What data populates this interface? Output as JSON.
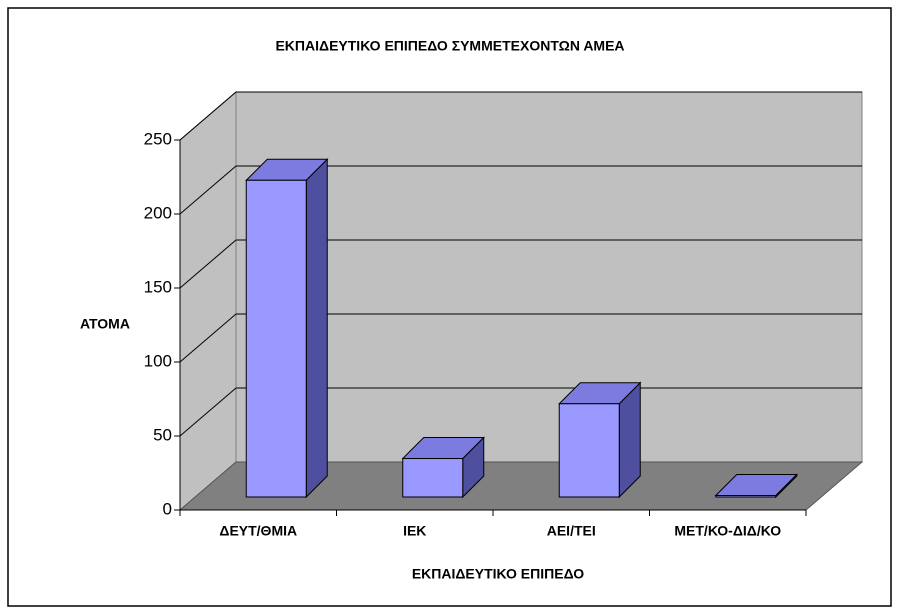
{
  "chart_data": {
    "type": "bar3d",
    "title": "ΕΚΠΑΙΔΕΥΤΙΚΟ ΕΠΙΠΕΔΟ ΣΥΜΜΕΤΕΧΟΝΤΩΝ ΑΜΕΑ",
    "x_label": "ΕΚΠΑΙΔΕΥΤΙΚΟ ΕΠΙΠΕΔΟ",
    "y_label": "ΑΤΟΜΑ",
    "categories": [
      "ΔΕΥΤ/ΘΜΙΑ",
      "ΙΕΚ",
      "ΑΕΙ/ΤΕΙ",
      "ΜΕΤ/ΚΟ-ΔΙΔ/ΚΟ"
    ],
    "values": [
      214,
      26,
      63,
      1
    ],
    "color": "#9999ff",
    "ylim": [
      0,
      250
    ],
    "yticks": [
      0,
      50,
      100,
      150,
      200,
      250
    ],
    "grid": true
  }
}
